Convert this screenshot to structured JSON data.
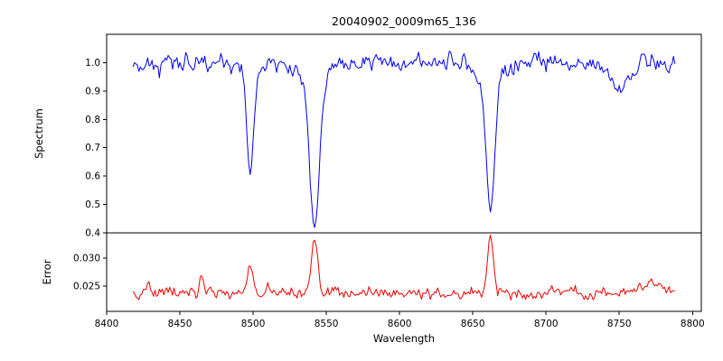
{
  "chart_data": {
    "type": "line",
    "title": "20040902_0009m65_136",
    "xlabel": "Wavelength",
    "xlim": [
      8400,
      8806
    ],
    "xticks": [
      8400,
      8450,
      8500,
      8550,
      8600,
      8650,
      8700,
      8750,
      8800
    ],
    "x_start": 8418,
    "x_end": 8788,
    "x_step": 1,
    "grid": false,
    "legend": "none",
    "panels": [
      {
        "name": "spectrum",
        "ylabel": "Spectrum",
        "color": "#0000ee",
        "ylim": [
          0.4,
          1.1
        ],
        "ytick_values": [
          0.4,
          0.5,
          0.6,
          0.7,
          0.8,
          0.9,
          1.0
        ],
        "ytick_labels": [
          "0.4",
          "0.5",
          "0.6",
          "0.7",
          "0.8",
          "0.9",
          "1.0"
        ],
        "baseline": 1.0,
        "noise_sigma": 0.016,
        "noise_mode": "proportional",
        "seed": 42,
        "height_weight": 2.53,
        "features": [
          {
            "center": 8498.0,
            "amplitude": -0.34,
            "width": 2.2,
            "label": "absorption line core 8498, min ~0.62"
          },
          {
            "center": 8498.0,
            "amplitude": -0.04,
            "width": 6.0,
            "label": "absorption line wings 8498"
          },
          {
            "center": 8542.0,
            "amplitude": -0.5,
            "width": 3.2,
            "label": "absorption line core 8542, min ~0.42"
          },
          {
            "center": 8542.0,
            "amplitude": -0.08,
            "width": 9.0,
            "label": "absorption line wings 8542"
          },
          {
            "center": 8662.0,
            "amplitude": -0.46,
            "width": 2.8,
            "label": "absorption line core 8662, min ~0.47"
          },
          {
            "center": 8662.0,
            "amplitude": -0.07,
            "width": 8.0,
            "label": "absorption line wings 8662"
          },
          {
            "center": 8750.0,
            "amplitude": -0.09,
            "width": 7.0,
            "label": "broad shallow dip near 8750, min ~0.88"
          }
        ]
      },
      {
        "name": "error",
        "ylabel": "Error",
        "color": "#ee0000",
        "ylim": [
          0.0205,
          0.0345
        ],
        "ytick_values": [
          0.025,
          0.03
        ],
        "ytick_labels": [
          "0.025",
          "0.030"
        ],
        "baseline": 0.0238,
        "noise_sigma": 0.00055,
        "noise_mode": "additive",
        "seed": 7,
        "height_weight": 1.0,
        "features": [
          {
            "center": 8498.0,
            "amplitude": 0.005,
            "width": 1.8,
            "label": "error peak 8498, max ~0.029"
          },
          {
            "center": 8542.0,
            "amplitude": 0.0102,
            "width": 2.2,
            "label": "error peak 8542, max ~0.034"
          },
          {
            "center": 8662.0,
            "amplitude": 0.01,
            "width": 2.0,
            "label": "error peak 8662, max ~0.034"
          },
          {
            "center": 8465.0,
            "amplitude": 0.003,
            "width": 1.5,
            "label": "small error spike 8465"
          },
          {
            "center": 8428.0,
            "amplitude": 0.0015,
            "width": 1.5,
            "label": "small error spike 8428"
          },
          {
            "center": 8770.0,
            "amplitude": 0.0018,
            "width": 10.0,
            "label": "elevated error near right edge"
          },
          {
            "center": 8418.0,
            "amplitude": -0.0012,
            "width": 4.0,
            "label": "lower error at left edge"
          }
        ]
      }
    ]
  }
}
